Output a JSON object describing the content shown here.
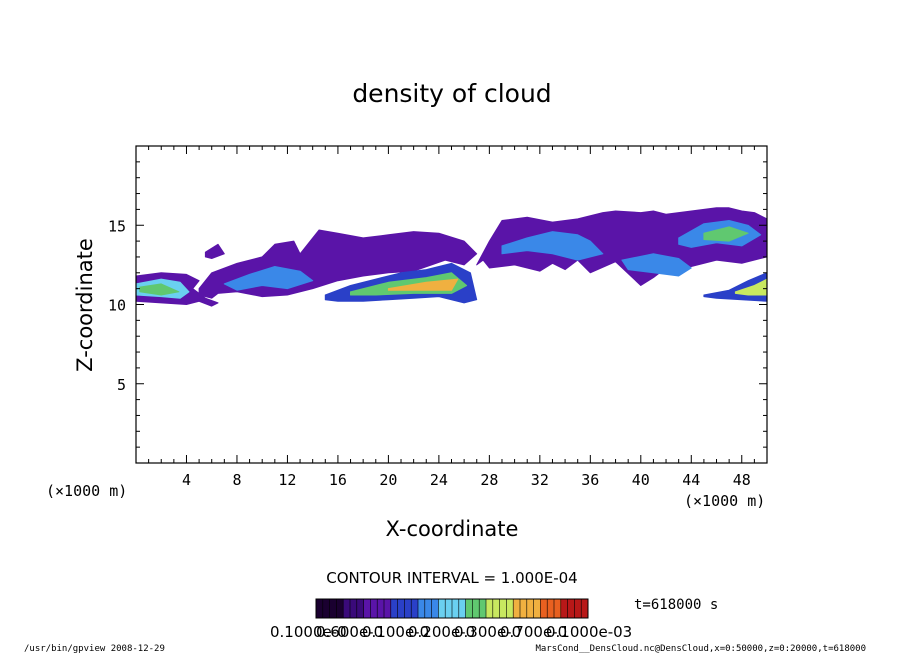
{
  "chart_data": {
    "type": "heatmap",
    "title": "density of cloud",
    "xlabel": "X-coordinate",
    "ylabel": "Z-coordinate",
    "x_unit": "(×1000 m)",
    "y_unit": "(×1000 m)",
    "xlim": [
      0,
      50
    ],
    "ylim": [
      0,
      20
    ],
    "xticks": [
      4,
      8,
      12,
      16,
      20,
      24,
      28,
      32,
      36,
      40,
      44,
      48
    ],
    "yticks": [
      5,
      10,
      15
    ],
    "grid": false,
    "contour_interval_label": "CONTOUR INTERVAL = 1.000E-04",
    "time_label": "t=618000 s",
    "colorbar_labels": [
      "0.1000e-0",
      "0.600e-0",
      "0.100e-0",
      "0.200e-0",
      "0.300e-0",
      "0.700e-0",
      "0.1000e-03"
    ],
    "colorbar_min": 0.0,
    "colorbar_max": 0.001,
    "colormap": [
      "#1a0030",
      "#3a0a7a",
      "#5a14a8",
      "#2a40c8",
      "#3a88e8",
      "#6ad0f0",
      "#60c870",
      "#c8e860",
      "#f0b040",
      "#e86020",
      "#b81818"
    ],
    "cloud_patches": [
      {
        "x": [
          0,
          2,
          4,
          5,
          4.5,
          5.5,
          6.5,
          6,
          5,
          4,
          2,
          0
        ],
        "z": [
          11.8,
          12,
          11.9,
          11.5,
          11,
          10.4,
          10.1,
          9.9,
          10.2,
          10,
          10.1,
          10.2
        ],
        "level": 0.0002
      },
      {
        "x": [
          0,
          2,
          3.5,
          4.2,
          3.5,
          2,
          0
        ],
        "z": [
          11.3,
          11.6,
          11.4,
          10.8,
          10.4,
          10.5,
          10.6
        ],
        "level": 0.0005
      },
      {
        "x": [
          0.3,
          2,
          3.4,
          2,
          0.3
        ],
        "z": [
          11.1,
          11.3,
          10.8,
          10.6,
          10.8
        ],
        "level": 0.0006
      },
      {
        "x": [
          5,
          6,
          8,
          10,
          11,
          12.5,
          13,
          14,
          14.5,
          16,
          18,
          20,
          22,
          24,
          26,
          27,
          26,
          24.5,
          22,
          20,
          18,
          16,
          14,
          12,
          10,
          8,
          6.5,
          6,
          5
        ],
        "z": [
          11,
          12,
          12.6,
          13,
          13.8,
          14,
          13.2,
          14.2,
          14.7,
          14.5,
          14.2,
          14.4,
          14.6,
          14.5,
          14,
          13.2,
          12.5,
          12.8,
          12.1,
          12,
          11.8,
          11.5,
          11,
          10.6,
          10.5,
          10.8,
          10.7,
          10.4,
          10.6
        ],
        "level": 0.0002
      },
      {
        "x": [
          7,
          9,
          11,
          13,
          14,
          12,
          10,
          8
        ],
        "z": [
          11.3,
          11.9,
          12.4,
          12.1,
          11.5,
          11,
          11.2,
          10.9
        ],
        "level": 0.0004
      },
      {
        "x": [
          15,
          17,
          19,
          21,
          23,
          25,
          26.5,
          27,
          26,
          24,
          22,
          20,
          18,
          16,
          15
        ],
        "z": [
          10.6,
          11.2,
          11.6,
          12,
          12.2,
          12.6,
          12,
          10.3,
          10.1,
          10.5,
          10.4,
          10.3,
          10.2,
          10.2,
          10.3
        ],
        "level": 0.0003
      },
      {
        "x": [
          17,
          20,
          23,
          25,
          26.2,
          25,
          22,
          19,
          17
        ],
        "z": [
          10.8,
          11.4,
          11.7,
          12,
          11.2,
          10.7,
          10.7,
          10.6,
          10.6
        ],
        "level": 0.0006
      },
      {
        "x": [
          20,
          23,
          25.5,
          25,
          22,
          20
        ],
        "z": [
          11,
          11.4,
          11.6,
          10.9,
          10.9,
          10.9
        ],
        "level": 0.0008
      },
      {
        "x": [
          27,
          28,
          29,
          31,
          33,
          35,
          37,
          38,
          40,
          41,
          42,
          44,
          46,
          47,
          48,
          49,
          50,
          50,
          48,
          46,
          44,
          42,
          41,
          40,
          38,
          36,
          35,
          34,
          33,
          32,
          30,
          28,
          27.5
        ],
        "z": [
          12.5,
          14,
          15.3,
          15.5,
          15.2,
          15.4,
          15.8,
          15.9,
          15.8,
          15.9,
          15.7,
          15.9,
          16.1,
          16.1,
          15.9,
          15.8,
          15.4,
          13,
          12.6,
          12.8,
          12.4,
          12.3,
          11.7,
          11.2,
          12.7,
          12,
          12.8,
          12.2,
          12.6,
          12.1,
          12.5,
          12.3,
          12.8
        ],
        "level": 0.0002
      },
      {
        "x": [
          29,
          31,
          33,
          35,
          36,
          37,
          35,
          33,
          31,
          29
        ],
        "z": [
          13.7,
          14.2,
          14.6,
          14.4,
          14,
          13.2,
          12.8,
          13.2,
          13.4,
          13.2
        ],
        "level": 0.0004
      },
      {
        "x": [
          43,
          45,
          47,
          48.5,
          49.5,
          48,
          46,
          44,
          43
        ],
        "z": [
          14.2,
          15.1,
          15.3,
          15,
          14.4,
          13.7,
          13.9,
          13.6,
          13.8
        ],
        "level": 0.0004
      },
      {
        "x": [
          45,
          47,
          48.5,
          47,
          45
        ],
        "z": [
          14.5,
          14.9,
          14.5,
          14,
          14.1
        ],
        "level": 0.0006
      },
      {
        "x": [
          38.5,
          41,
          43,
          44,
          43,
          41,
          39
        ],
        "z": [
          12.8,
          13.2,
          12.9,
          12.3,
          11.8,
          12,
          12.2
        ],
        "level": 0.0004
      },
      {
        "x": [
          45,
          47,
          48.5,
          50,
          50,
          48,
          46,
          45
        ],
        "z": [
          10.6,
          10.9,
          11.5,
          12,
          10.2,
          10.3,
          10.4,
          10.5
        ],
        "level": 0.0003
      },
      {
        "x": [
          47.5,
          49,
          50,
          50,
          48.5,
          47.5
        ],
        "z": [
          10.8,
          11.2,
          11.6,
          10.6,
          10.6,
          10.7
        ],
        "level": 0.0007
      },
      {
        "x": [
          5.5,
          6.5,
          7,
          6,
          5.5
        ],
        "z": [
          13.3,
          13.8,
          13.2,
          12.9,
          13
        ],
        "level": 0.0002
      }
    ]
  },
  "footer": {
    "left": "/usr/bin/gpview   2008-12-29",
    "right": "MarsCond__DensCloud.nc@DensCloud,x=0:50000,z=0:20000,t=618000"
  }
}
